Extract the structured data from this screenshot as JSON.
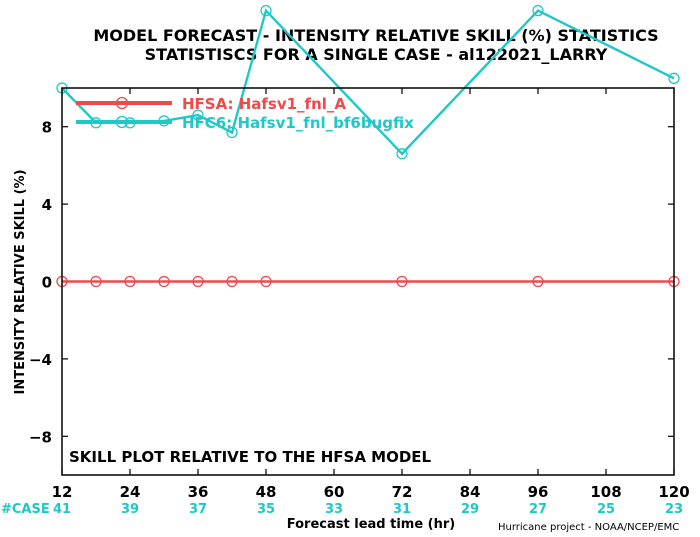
{
  "chart_data": {
    "type": "line",
    "title_line1": "MODEL FORECAST - INTENSITY RELATIVE SKILL (%) STATISTICS",
    "title_line2": "STATISTISCS FOR A SINGLE CASE - al122021_LARRY",
    "xlabel": "Forecast lead time (hr)",
    "ylabel": "INTENSITY RELATIVE SKILL (%)",
    "xlim": [
      12,
      120
    ],
    "ylim": [
      -10,
      10
    ],
    "x_ticks": [
      12,
      24,
      36,
      48,
      60,
      72,
      84,
      96,
      108,
      120
    ],
    "y_ticks": [
      8,
      4,
      0,
      -4,
      -8
    ],
    "y_tick_labels": [
      "8",
      "4",
      "0",
      "−4",
      "−8"
    ],
    "case_label": "#CASE",
    "case_counts": [
      "41",
      "39",
      "37",
      "35",
      "33",
      "31",
      "29",
      "27",
      "25",
      "23"
    ],
    "annotation": "SKILL PLOT RELATIVE TO THE HFSA MODEL",
    "credit": "Hurricane project - NOAA/NCEP/EMC",
    "grid": false,
    "legend_position": "top-left",
    "series": [
      {
        "name": "HFSA: Hafsv1_fnl_A",
        "color": "#f0484b",
        "x": [
          12,
          18,
          24,
          30,
          36,
          42,
          48,
          72,
          96,
          120
        ],
        "y": [
          0,
          0,
          0,
          0,
          0,
          0,
          0,
          0,
          0,
          0
        ]
      },
      {
        "name": "HFC6: Hafsv1_fnl_bf6bugfix",
        "color": "#1fc8c8",
        "x": [
          12,
          18,
          24,
          30,
          36,
          42,
          48,
          72,
          96,
          120
        ],
        "y": [
          10,
          8.2,
          8.2,
          8.3,
          8.6,
          7.7,
          14,
          6.6,
          14,
          10.5
        ]
      }
    ]
  }
}
